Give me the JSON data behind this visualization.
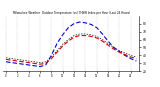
{
  "title": "Milwaukee Weather  Outdoor Temperature (vs) THSW Index per Hour (Last 24 Hours)",
  "hours": [
    0,
    1,
    2,
    3,
    4,
    5,
    6,
    7,
    8,
    9,
    10,
    11,
    12,
    13,
    14,
    15,
    16,
    17,
    18,
    19,
    20,
    21,
    22,
    23
  ],
  "temp": [
    35,
    34,
    33,
    32,
    31,
    30,
    29,
    30,
    36,
    44,
    52,
    58,
    63,
    65,
    65,
    64,
    62,
    58,
    53,
    48,
    44,
    41,
    38,
    36
  ],
  "thsw": [
    32,
    31,
    30,
    29,
    28,
    27,
    26,
    28,
    40,
    55,
    66,
    75,
    80,
    82,
    81,
    79,
    75,
    67,
    58,
    50,
    45,
    40,
    36,
    33
  ],
  "line3": [
    37,
    36,
    35,
    34,
    33,
    32,
    31,
    32,
    38,
    46,
    54,
    60,
    65,
    67,
    67,
    66,
    64,
    60,
    55,
    50,
    46,
    43,
    40,
    38
  ],
  "temp_color": "#cc0000",
  "thsw_color": "#0000cc",
  "line3_color": "#000000",
  "bg_color": "#ffffff",
  "ylim": [
    20,
    90
  ],
  "yticks": [
    20,
    30,
    40,
    50,
    60,
    70,
    80
  ],
  "grid_color": "#999999",
  "figsize": [
    1.6,
    0.87
  ],
  "dpi": 100
}
